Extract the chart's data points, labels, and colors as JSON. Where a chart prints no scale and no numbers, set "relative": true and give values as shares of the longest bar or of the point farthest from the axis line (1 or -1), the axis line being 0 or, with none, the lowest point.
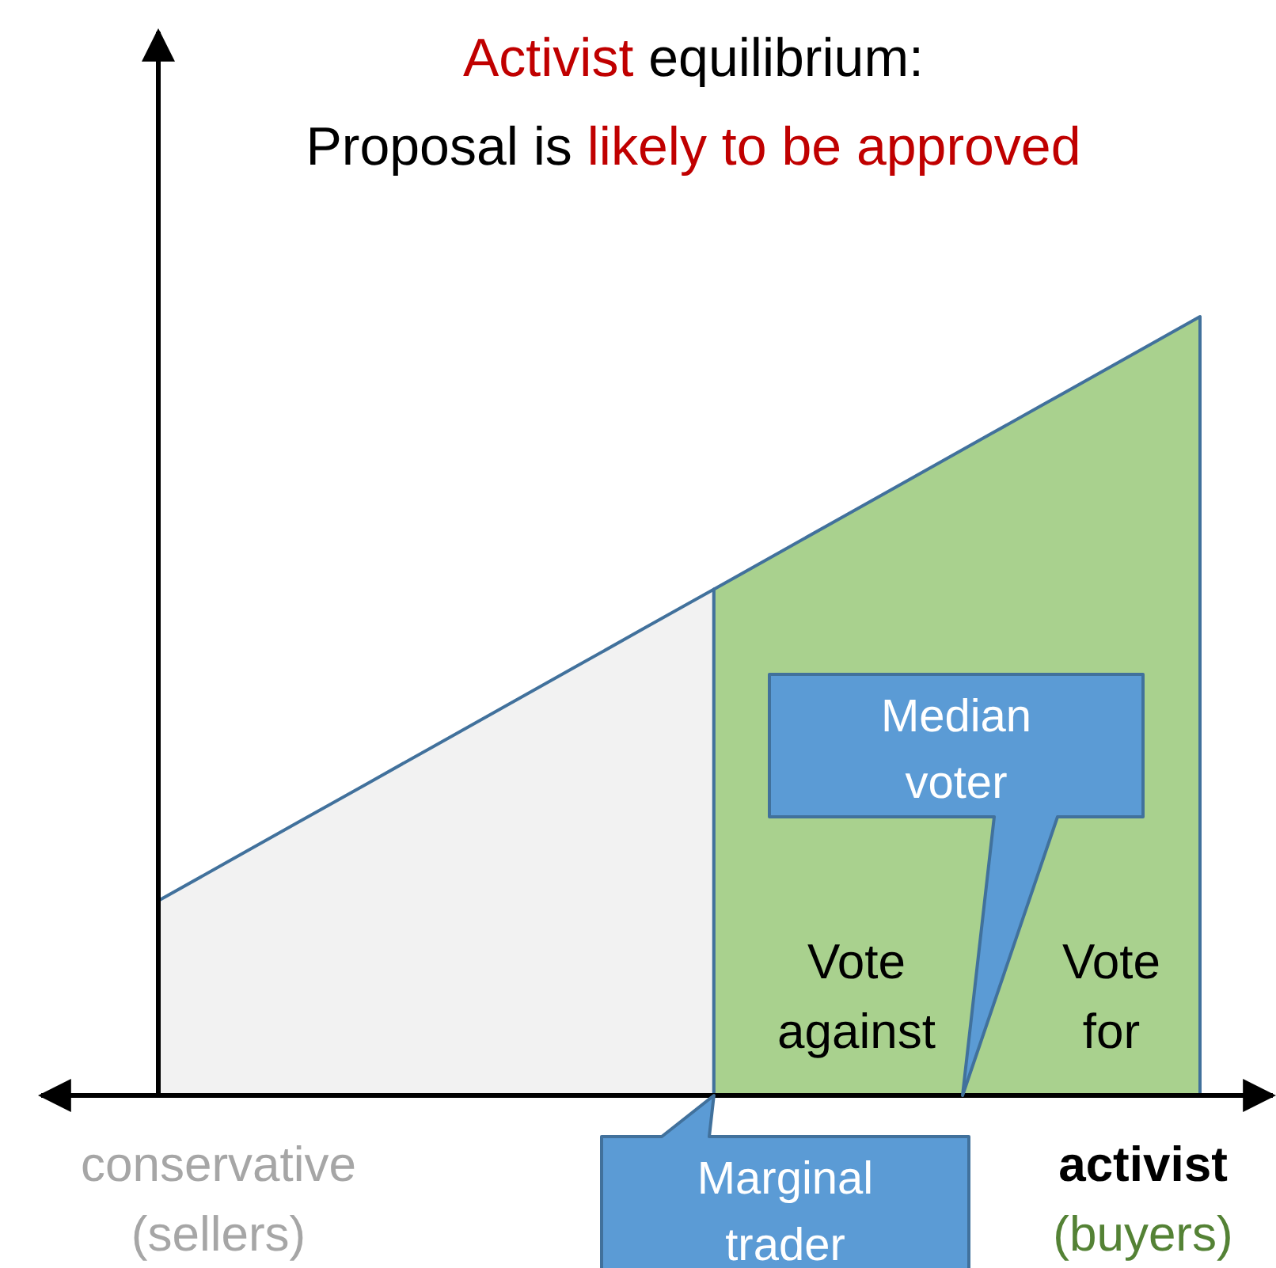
{
  "chart_data": {
    "type": "area",
    "title": "Activist equilibrium:",
    "subtitle": "Proposal is likely to be approved",
    "relative": true,
    "categories": [
      null,
      null,
      null,
      null,
      null,
      null,
      null,
      null,
      null,
      null,
      null,
      null,
      null,
      null,
      null,
      null
    ],
    "series": [
      {
        "color": "#f2f2f2",
        "values": [
          0.25,
          0.3,
          0.35,
          0.4,
          0.45,
          0.5,
          0.55,
          0.6,
          0.65,
          null,
          null,
          null,
          null,
          null,
          null,
          null
        ]
      },
      {
        "color": "#a9d18e",
        "values": [
          null,
          null,
          null,
          null,
          null,
          null,
          null,
          null,
          0.65,
          0.7,
          0.75,
          0.8,
          0.85,
          0.9,
          0.95,
          1
        ]
      }
    ],
    "annotations": [
      "Vote against",
      "Vote for",
      "conservative (sellers)",
      "activist (buyers)",
      "Median voter",
      "Marginal trader"
    ]
  }
}
